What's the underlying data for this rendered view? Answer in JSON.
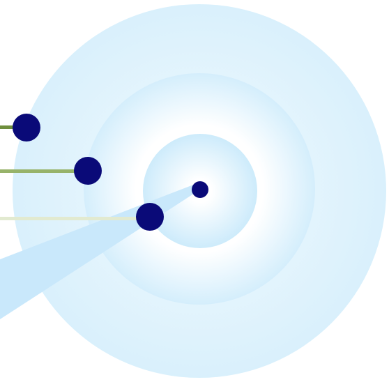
{
  "diagram": {
    "kind": "concentric-rings",
    "colors": {
      "background": "#ffffff",
      "ring_outer_edge": "#d9f0fc",
      "ring_outer_inner": "#f2fafe",
      "ring_middle_edge": "#d4eefc",
      "ring_middle_inner": "#ffffff",
      "ring_inner_edge": "#cdebfb",
      "ring_inner_center": "#ffffff",
      "beam": "#c9e8fb",
      "node": "#0a0a78",
      "connector_dark": "#6f8f3d",
      "connector_mid": "#97b36a",
      "connector_light": "#e2ead0"
    },
    "rings": [
      "outer-ring",
      "middle-ring",
      "inner-ring"
    ],
    "connectors": [
      {
        "name": "connector-1",
        "shade": "dark"
      },
      {
        "name": "connector-2",
        "shade": "mid"
      },
      {
        "name": "connector-3",
        "shade": "light"
      }
    ],
    "nodes": [
      "node-1",
      "node-2",
      "node-3",
      "center-node"
    ]
  }
}
